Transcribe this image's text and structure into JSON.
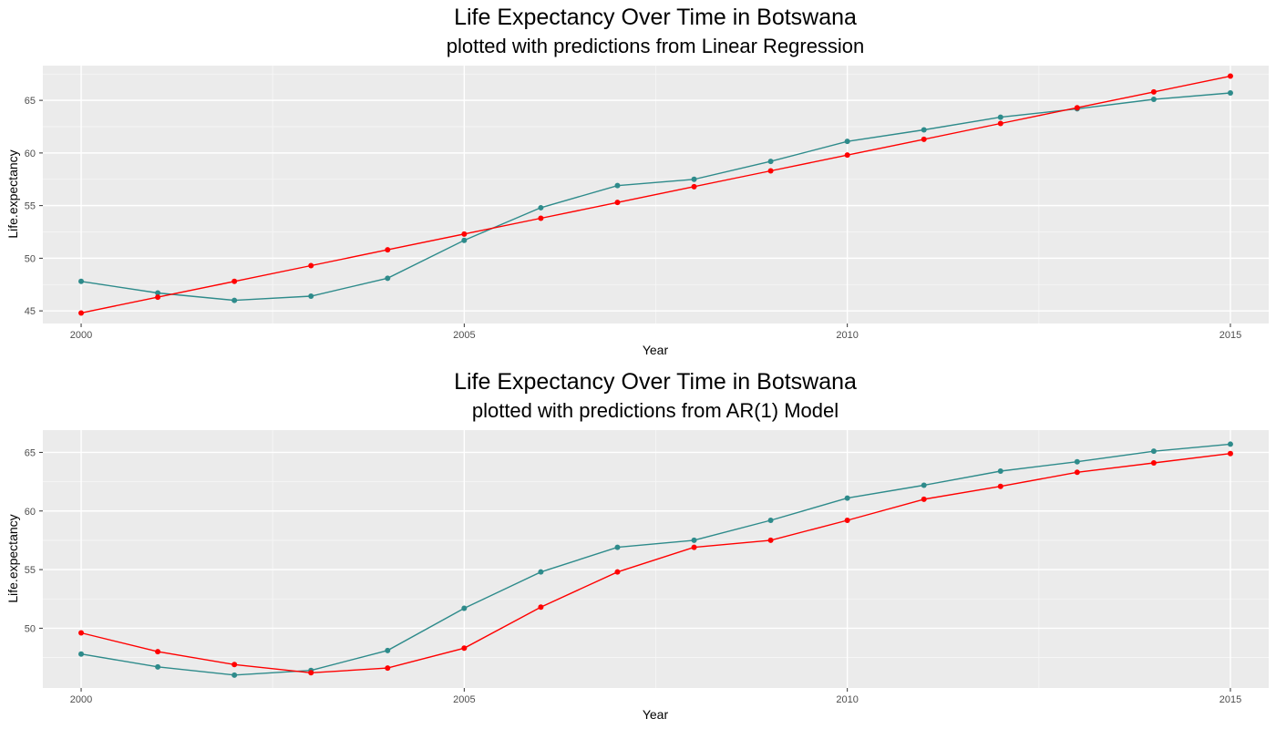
{
  "chart_data": [
    {
      "type": "line",
      "title": "Life Expectancy Over Time in Botswana",
      "subtitle": "plotted with predictions from Linear Regression",
      "xlabel": "Year",
      "ylabel": "Life.expectancy",
      "x": [
        2000,
        2001,
        2002,
        2003,
        2004,
        2005,
        2006,
        2007,
        2008,
        2009,
        2010,
        2011,
        2012,
        2013,
        2014,
        2015
      ],
      "xlim": [
        1999.5,
        2015.5
      ],
      "ylim": [
        43.8,
        68.3
      ],
      "x_ticks": [
        "2000",
        "2005",
        "2010",
        "2015"
      ],
      "y_ticks": [
        "45",
        "50",
        "55",
        "60",
        "65"
      ],
      "grid": true,
      "series": [
        {
          "color": "#2e8b8b",
          "values": [
            47.8,
            46.7,
            46.0,
            46.4,
            48.1,
            51.7,
            54.8,
            56.9,
            57.5,
            59.2,
            61.1,
            62.2,
            63.4,
            64.2,
            65.1,
            65.7
          ]
        },
        {
          "color": "#ff0000",
          "values": [
            44.8,
            46.3,
            47.8,
            49.3,
            50.8,
            52.3,
            53.8,
            55.3,
            56.8,
            58.3,
            59.8,
            61.3,
            62.8,
            64.3,
            65.8,
            67.3
          ]
        }
      ]
    },
    {
      "type": "line",
      "title": "Life Expectancy Over Time in Botswana",
      "subtitle": "plotted with predictions from AR(1) Model",
      "xlabel": "Year",
      "ylabel": "Life.expectancy",
      "x": [
        2000,
        2001,
        2002,
        2003,
        2004,
        2005,
        2006,
        2007,
        2008,
        2009,
        2010,
        2011,
        2012,
        2013,
        2014,
        2015
      ],
      "xlim": [
        1999.5,
        2015.5
      ],
      "ylim": [
        44.9,
        66.9
      ],
      "x_ticks": [
        "2000",
        "2005",
        "2010",
        "2015"
      ],
      "y_ticks": [
        "50",
        "55",
        "60",
        "65"
      ],
      "grid": true,
      "series": [
        {
          "color": "#2e8b8b",
          "values": [
            47.8,
            46.7,
            46.0,
            46.4,
            48.1,
            51.7,
            54.8,
            56.9,
            57.5,
            59.2,
            61.1,
            62.2,
            63.4,
            64.2,
            65.1,
            65.7
          ]
        },
        {
          "color": "#ff0000",
          "values": [
            49.6,
            48.0,
            46.9,
            46.2,
            46.6,
            48.3,
            51.8,
            54.8,
            56.9,
            57.5,
            59.2,
            61.0,
            62.1,
            63.3,
            64.1,
            64.9
          ]
        }
      ]
    }
  ]
}
